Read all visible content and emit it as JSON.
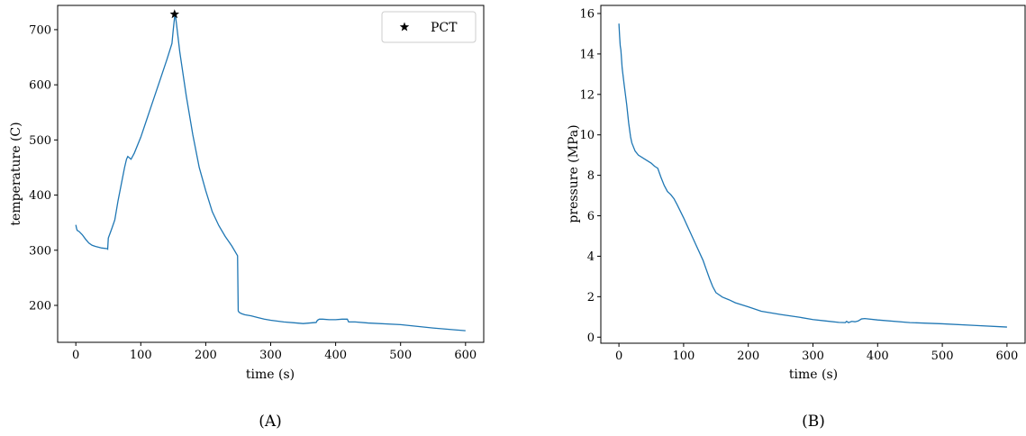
{
  "chart_data": [
    {
      "type": "line",
      "caption": "(A)",
      "xlabel": "time (s)",
      "ylabel": "temperature (C)",
      "xlim": [
        -28,
        628
      ],
      "ylim": [
        133,
        744
      ],
      "xticks": [
        0,
        100,
        200,
        300,
        400,
        500,
        600
      ],
      "yticks": [
        200,
        300,
        400,
        500,
        600,
        700
      ],
      "color": "#1f77b4",
      "legend": {
        "position": "top-right",
        "entries": [
          "PCT"
        ]
      },
      "markers": [
        {
          "label": "PCT",
          "symbol": "star",
          "x": 152,
          "y": 728
        }
      ],
      "series": [
        {
          "x": [
            0,
            1,
            2,
            5,
            10,
            15,
            20,
            25,
            30,
            40,
            48,
            49,
            50,
            55,
            60,
            65,
            70,
            75,
            78,
            80,
            82,
            85,
            90,
            100,
            110,
            120,
            130,
            140,
            148,
            150,
            152,
            153,
            155,
            160,
            170,
            180,
            190,
            200,
            210,
            220,
            230,
            240,
            248,
            249,
            250,
            251,
            252,
            255,
            260,
            270,
            280,
            290,
            300,
            320,
            340,
            350,
            370,
            372,
            375,
            380,
            390,
            400,
            410,
            418,
            420,
            430,
            450,
            500,
            550,
            600
          ],
          "y": [
            346,
            340,
            336,
            334,
            328,
            320,
            313,
            309,
            307,
            304,
            303,
            302,
            322,
            338,
            355,
            390,
            420,
            450,
            465,
            470,
            468,
            465,
            476,
            505,
            540,
            575,
            610,
            645,
            675,
            700,
            722,
            728,
            710,
            660,
            580,
            510,
            450,
            408,
            370,
            345,
            325,
            308,
            292,
            290,
            190,
            188,
            187,
            185,
            183,
            181,
            178,
            175,
            173,
            170,
            168,
            167,
            169,
            173,
            175,
            175,
            174,
            174,
            175,
            175,
            170,
            170,
            168,
            165,
            159,
            154
          ]
        }
      ]
    },
    {
      "type": "line",
      "caption": "(B)",
      "xlabel": "time (s)",
      "ylabel": "pressure (MPa)",
      "xlim": [
        -28,
        628
      ],
      "ylim": [
        -0.3,
        16.4
      ],
      "xticks": [
        0,
        100,
        200,
        300,
        400,
        500,
        600
      ],
      "yticks": [
        0,
        2,
        4,
        6,
        8,
        10,
        12,
        14,
        16
      ],
      "color": "#1f77b4",
      "series": [
        {
          "x": [
            0,
            1,
            2,
            3,
            5,
            8,
            10,
            12,
            15,
            18,
            20,
            25,
            30,
            40,
            50,
            55,
            60,
            65,
            70,
            75,
            80,
            85,
            90,
            100,
            110,
            120,
            130,
            135,
            140,
            145,
            150,
            160,
            170,
            180,
            200,
            220,
            250,
            280,
            300,
            320,
            340,
            350,
            352,
            355,
            360,
            365,
            370,
            375,
            380,
            400,
            450,
            500,
            550,
            600
          ],
          "y": [
            15.5,
            14.9,
            14.4,
            14.2,
            13.3,
            12.5,
            12.0,
            11.5,
            10.6,
            9.9,
            9.6,
            9.2,
            9.0,
            8.8,
            8.6,
            8.45,
            8.35,
            7.9,
            7.5,
            7.2,
            7.05,
            6.85,
            6.55,
            5.9,
            5.2,
            4.5,
            3.8,
            3.35,
            2.9,
            2.5,
            2.2,
            1.98,
            1.85,
            1.7,
            1.5,
            1.28,
            1.12,
            0.98,
            0.87,
            0.8,
            0.73,
            0.72,
            0.78,
            0.72,
            0.78,
            0.76,
            0.8,
            0.9,
            0.92,
            0.85,
            0.72,
            0.66,
            0.58,
            0.5
          ]
        }
      ]
    }
  ]
}
